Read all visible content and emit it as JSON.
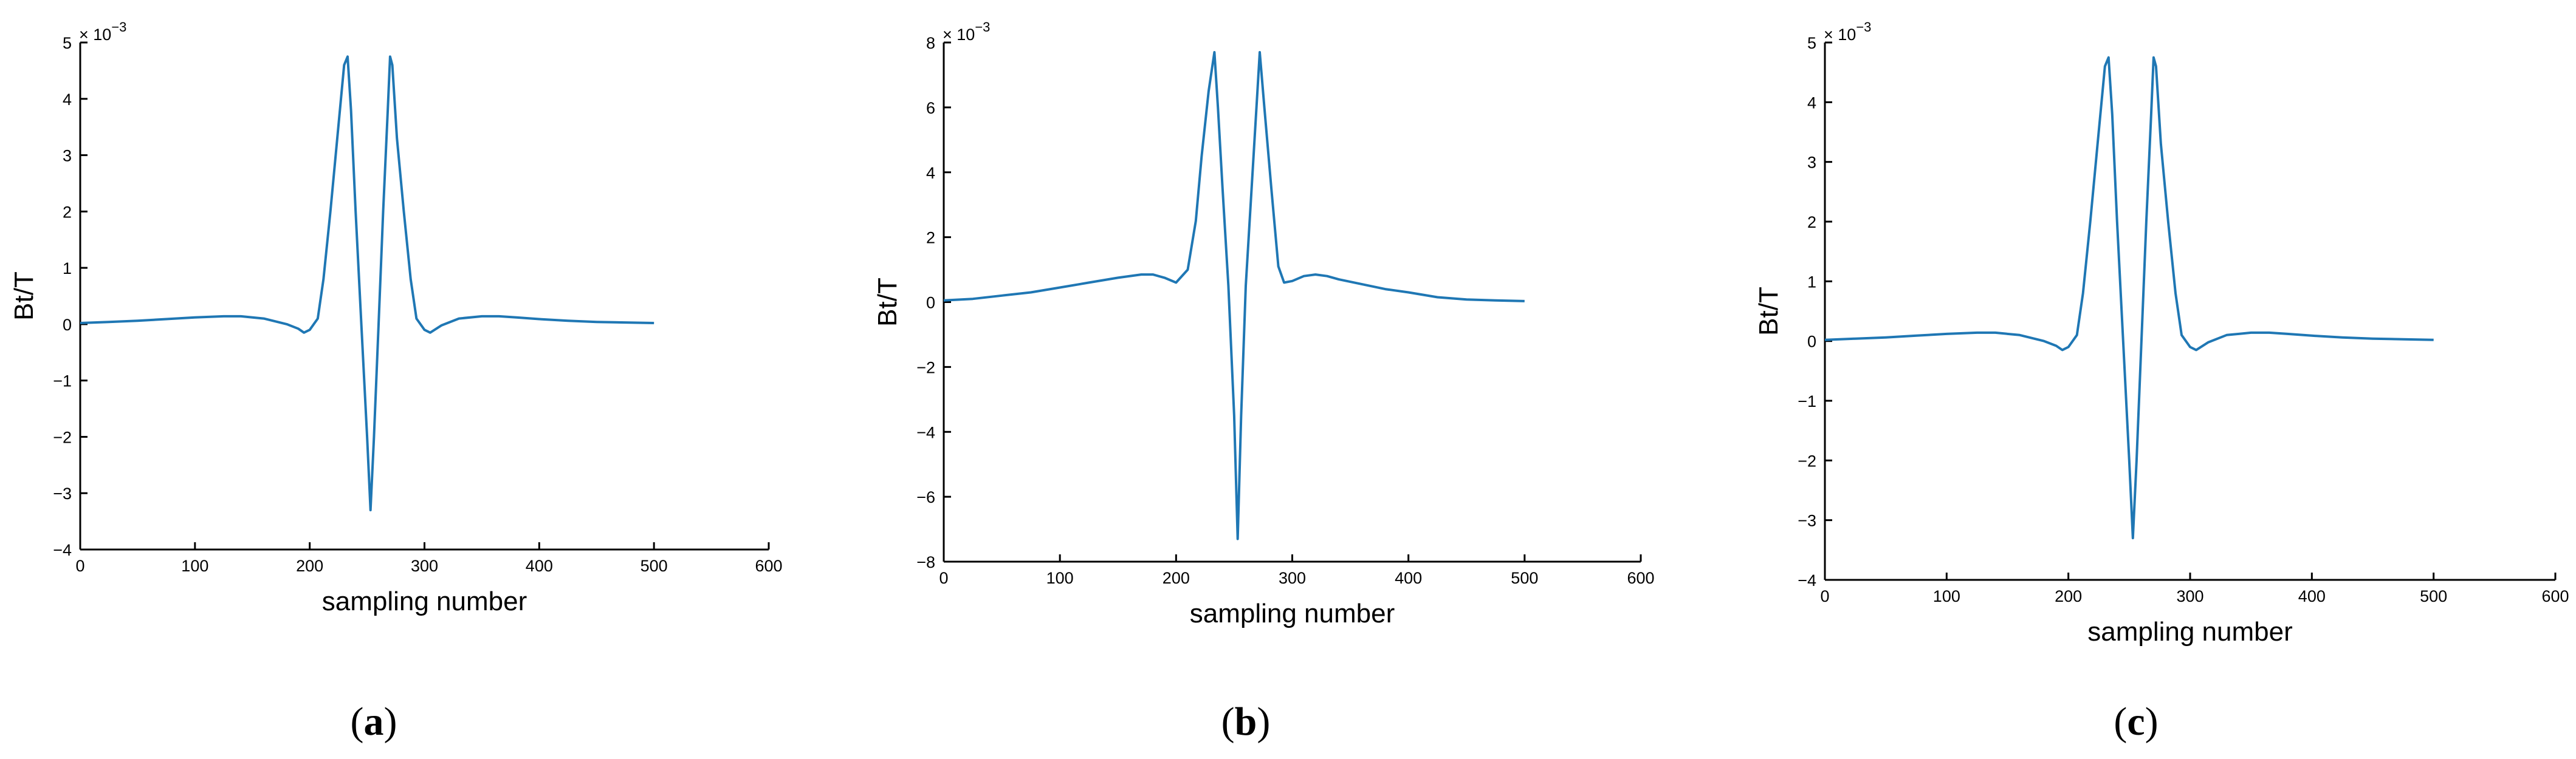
{
  "chart_data": [
    {
      "panel": "a",
      "type": "line",
      "xlabel": "sampling number",
      "ylabel": "Bt/T",
      "scale_label": "× 10",
      "scale_exponent": "−3",
      "xlim": [
        0,
        600
      ],
      "ylim": [
        -4,
        5
      ],
      "x_ticks": [
        0,
        100,
        200,
        300,
        400,
        500,
        600
      ],
      "y_ticks": [
        -4,
        -3,
        -2,
        -1,
        0,
        1,
        2,
        3,
        4,
        5
      ],
      "line_color": "#1f77b4",
      "series": [
        {
          "x": [
            0,
            25,
            50,
            75,
            100,
            125,
            140,
            160,
            180,
            190,
            195,
            200,
            207,
            212,
            218,
            224,
            230,
            233,
            236,
            240,
            245,
            250,
            253,
            256,
            260,
            264,
            268,
            270,
            272,
            276,
            282,
            288,
            293,
            300,
            305,
            315,
            330,
            350,
            365,
            380,
            400,
            425,
            450,
            475,
            500
          ],
          "y": [
            0.02,
            0.04,
            0.06,
            0.09,
            0.12,
            0.14,
            0.14,
            0.1,
            0.0,
            -0.08,
            -0.15,
            -0.1,
            0.1,
            0.8,
            2.0,
            3.3,
            4.6,
            4.75,
            3.8,
            2.0,
            0.0,
            -2.0,
            -3.3,
            -2.0,
            0.0,
            2.0,
            3.8,
            4.75,
            4.6,
            3.3,
            2.0,
            0.8,
            0.1,
            -0.1,
            -0.15,
            -0.02,
            0.1,
            0.14,
            0.14,
            0.12,
            0.09,
            0.06,
            0.04,
            0.03,
            0.02
          ]
        }
      ],
      "caption_open": "(",
      "caption": "a",
      "caption_close": ")"
    },
    {
      "panel": "b",
      "type": "line",
      "xlabel": "sampling number",
      "ylabel": "Bt/T",
      "scale_label": "× 10",
      "scale_exponent": "−3",
      "xlim": [
        0,
        600
      ],
      "ylim": [
        -8,
        8
      ],
      "x_ticks": [
        0,
        100,
        200,
        300,
        400,
        500,
        600
      ],
      "y_ticks": [
        -8,
        -6,
        -4,
        -2,
        0,
        2,
        4,
        6,
        8
      ],
      "line_color": "#1f77b4",
      "series": [
        {
          "x": [
            0,
            25,
            50,
            75,
            100,
            125,
            150,
            170,
            180,
            190,
            200,
            210,
            217,
            222,
            228,
            233,
            236,
            240,
            245,
            250,
            253,
            256,
            260,
            265,
            270,
            272,
            276,
            282,
            288,
            293,
            300,
            310,
            320,
            330,
            340,
            360,
            380,
            400,
            425,
            450,
            475,
            500
          ],
          "y": [
            0.05,
            0.1,
            0.2,
            0.3,
            0.45,
            0.6,
            0.75,
            0.85,
            0.85,
            0.75,
            0.6,
            1.0,
            2.5,
            4.5,
            6.5,
            7.7,
            6.0,
            3.5,
            0.5,
            -3.5,
            -7.3,
            -3.5,
            0.5,
            3.5,
            6.5,
            7.7,
            6.0,
            3.5,
            1.1,
            0.6,
            0.65,
            0.8,
            0.85,
            0.8,
            0.7,
            0.55,
            0.4,
            0.3,
            0.15,
            0.08,
            0.05,
            0.03
          ]
        }
      ],
      "caption_open": "(",
      "caption": "b",
      "caption_close": ")"
    },
    {
      "panel": "c",
      "type": "line",
      "xlabel": "sampling number",
      "ylabel": "Bt/T",
      "scale_label": "× 10",
      "scale_exponent": "−3",
      "xlim": [
        0,
        600
      ],
      "ylim": [
        -4,
        5
      ],
      "x_ticks": [
        0,
        100,
        200,
        300,
        400,
        500,
        600
      ],
      "y_ticks": [
        -4,
        -3,
        -2,
        -1,
        0,
        1,
        2,
        3,
        4,
        5
      ],
      "line_color": "#1f77b4",
      "series": [
        {
          "x": [
            0,
            25,
            50,
            75,
            100,
            125,
            140,
            160,
            180,
            190,
            195,
            200,
            207,
            212,
            218,
            224,
            230,
            233,
            236,
            240,
            245,
            250,
            253,
            256,
            260,
            264,
            268,
            270,
            272,
            276,
            282,
            288,
            293,
            300,
            305,
            315,
            330,
            350,
            365,
            380,
            400,
            425,
            450,
            475,
            500
          ],
          "y": [
            0.02,
            0.04,
            0.06,
            0.09,
            0.12,
            0.14,
            0.14,
            0.1,
            0.0,
            -0.08,
            -0.15,
            -0.1,
            0.1,
            0.8,
            2.0,
            3.3,
            4.6,
            4.75,
            3.8,
            2.0,
            0.0,
            -2.0,
            -3.3,
            -2.0,
            0.0,
            2.0,
            3.8,
            4.75,
            4.6,
            3.3,
            2.0,
            0.8,
            0.1,
            -0.1,
            -0.15,
            -0.02,
            0.1,
            0.14,
            0.14,
            0.12,
            0.09,
            0.06,
            0.04,
            0.03,
            0.02
          ]
        }
      ],
      "caption_open": "(",
      "caption": "c",
      "caption_close": ")"
    }
  ]
}
